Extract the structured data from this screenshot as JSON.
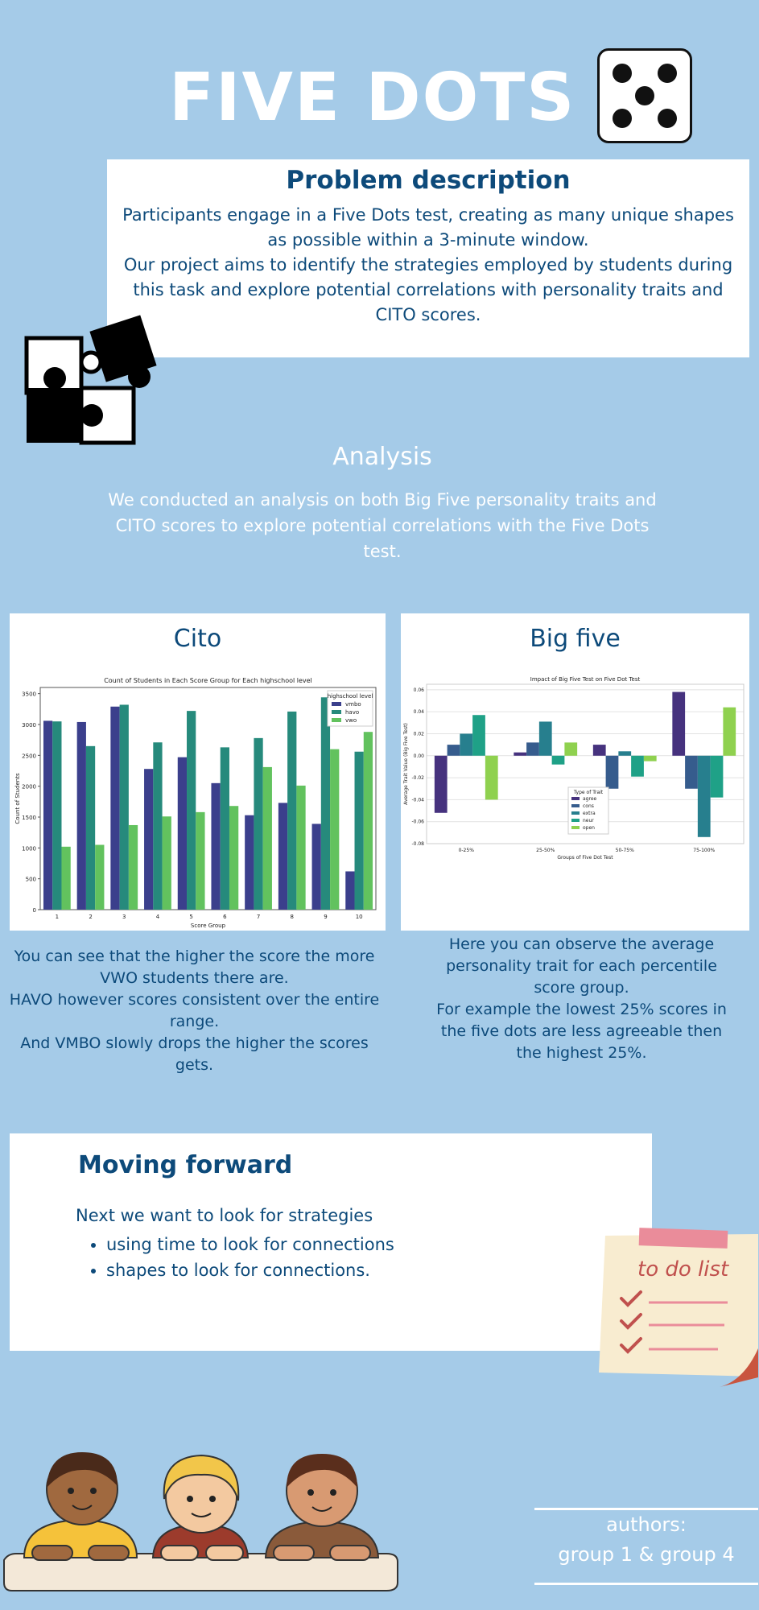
{
  "header": {
    "title": "FIVE DOTS"
  },
  "problem": {
    "heading": "Problem description",
    "paragraph1": "Participants engage in a Five Dots test, creating as many unique shapes as possible within a 3-minute window.",
    "paragraph2": "Our project aims to identify the strategies employed by students during this task and explore potential correlations with personality traits and CITO scores."
  },
  "analysis": {
    "heading": "Analysis",
    "body": "We conducted an analysis on both Big Five personality traits and CITO scores to explore potential correlations with the Five Dots test."
  },
  "cito": {
    "heading": "Cito",
    "caption": [
      "You can see that the higher the score the more VWO students there are.",
      "HAVO however scores consistent over the entire range.",
      "And VMBO slowly drops the higher the scores gets."
    ]
  },
  "bigfive": {
    "heading": "Big five",
    "caption": [
      "Here you can observe the average personality trait for each percentile score group.",
      "For example the lowest 25% scores in the five dots are less agreeable then the highest 25%."
    ]
  },
  "forward": {
    "heading": "Moving forward",
    "intro": "Next we want to look for strategies",
    "items": [
      "using time to look for connections",
      "shapes to look for connections."
    ]
  },
  "todo": {
    "label": "to do list"
  },
  "authors": {
    "line1": "authors:",
    "line2": "group 1 & group 4"
  },
  "colors": {
    "background": "#a5cbe8",
    "heading": "#0d4a7a",
    "vmbo": "#3b3f8c",
    "havo": "#268a7c",
    "vwo": "#62c25e"
  },
  "chart_data": [
    {
      "type": "bar",
      "title": "Count of Students in Each Score Group for Each highschool level",
      "xlabel": "Score Group",
      "ylabel": "Count of Students",
      "legend_title": "highschool level",
      "legend_position": "top-right",
      "categories": [
        "1",
        "2",
        "3",
        "4",
        "5",
        "6",
        "7",
        "8",
        "9",
        "10"
      ],
      "ylim": [
        0,
        3600
      ],
      "yticks": [
        0,
        500,
        1000,
        1500,
        2000,
        2500,
        3000,
        3500
      ],
      "series": [
        {
          "name": "vmbo",
          "color": "#3b3f8c",
          "values": [
            3060,
            3040,
            3290,
            2280,
            2470,
            2050,
            1530,
            1730,
            1390,
            620
          ]
        },
        {
          "name": "havo",
          "color": "#268a7c",
          "values": [
            3050,
            2650,
            3320,
            2710,
            3220,
            2630,
            2780,
            3210,
            3440,
            2560
          ]
        },
        {
          "name": "vwo",
          "color": "#62c25e",
          "values": [
            1020,
            1050,
            1370,
            1510,
            1580,
            1680,
            2310,
            2010,
            2600,
            2880
          ]
        }
      ]
    },
    {
      "type": "bar",
      "title": "Impact of Big Five Test on Five Dot Test",
      "xlabel": "Groups of Five Dot Test",
      "ylabel": "Average Trait Value (Big Five Test)",
      "legend_title": "Type of Trait",
      "legend_position": "bottom-center",
      "categories": [
        "0-25%",
        "25-50%",
        "50-75%",
        "75-100%"
      ],
      "ylim": [
        -0.08,
        0.065
      ],
      "yticks": [
        0.06,
        0.04,
        0.02,
        0.0,
        -0.02,
        -0.04,
        -0.06,
        -0.08
      ],
      "series": [
        {
          "name": "agree",
          "color": "#46327e",
          "values": [
            -0.052,
            0.003,
            0.01,
            0.058
          ]
        },
        {
          "name": "cons",
          "color": "#365c8d",
          "values": [
            0.01,
            0.012,
            -0.03,
            -0.03
          ]
        },
        {
          "name": "extra",
          "color": "#277f8e",
          "values": [
            0.02,
            0.031,
            0.004,
            -0.074
          ]
        },
        {
          "name": "neur",
          "color": "#1fa187",
          "values": [
            0.037,
            -0.008,
            -0.019,
            -0.038
          ]
        },
        {
          "name": "open",
          "color": "#8fd14f",
          "values": [
            -0.04,
            0.012,
            -0.005,
            0.044
          ]
        }
      ]
    }
  ]
}
